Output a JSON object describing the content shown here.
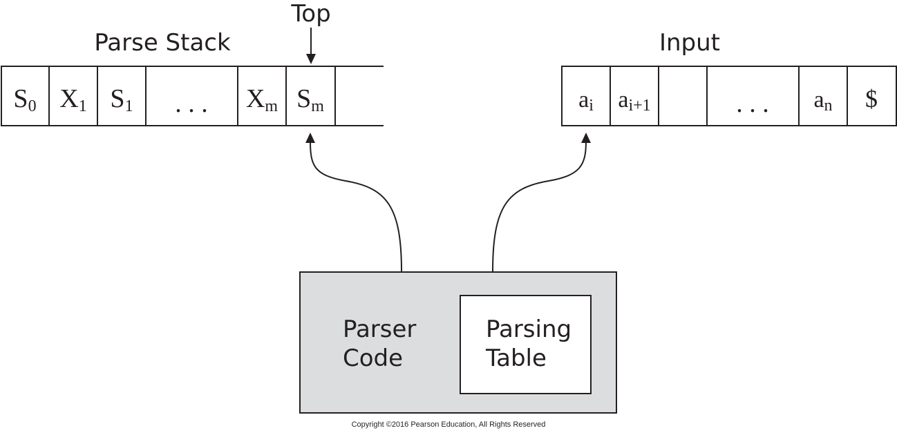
{
  "top_label": "Top",
  "parse_stack": {
    "title": "Parse Stack",
    "cells": [
      {
        "base": "S",
        "sub": "0"
      },
      {
        "base": "X",
        "sub": "1"
      },
      {
        "base": "S",
        "sub": "1"
      },
      {
        "base": ". . .",
        "sub": ""
      },
      {
        "base": "X",
        "sub": "m"
      },
      {
        "base": "S",
        "sub": "m"
      },
      {
        "base": "",
        "sub": ""
      }
    ]
  },
  "input": {
    "title": "Input",
    "cells": [
      {
        "base": "a",
        "sub": "i"
      },
      {
        "base": "a",
        "sub": "i+1"
      },
      {
        "base": "",
        "sub": ""
      },
      {
        "base": ". . .",
        "sub": ""
      },
      {
        "base": "a",
        "sub": "n"
      },
      {
        "base": "$",
        "sub": ""
      }
    ]
  },
  "parser_box": {
    "code_line1": "Parser",
    "code_line2": "Code",
    "table_line1": "Parsing",
    "table_line2": "Table"
  },
  "copyright": "Copyright ©2016 Pearson Education, All Rights Reserved",
  "colors": {
    "ink": "#231f20",
    "parser_fill": "#dcddde",
    "table_fill": "#ffffff"
  }
}
